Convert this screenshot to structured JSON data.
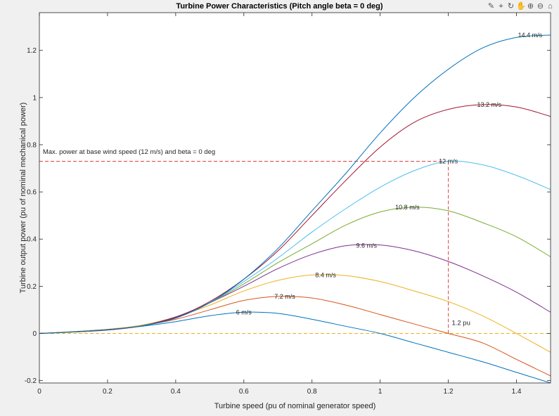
{
  "toolbar": {
    "icons": [
      {
        "name": "brush-icon",
        "glyph": "✎"
      },
      {
        "name": "datatip-icon",
        "glyph": "⌖"
      },
      {
        "name": "rotate-icon",
        "glyph": "↻"
      },
      {
        "name": "pan-icon",
        "glyph": "✋"
      },
      {
        "name": "zoom-in-icon",
        "glyph": "⊕"
      },
      {
        "name": "zoom-out-icon",
        "glyph": "⊖"
      },
      {
        "name": "home-icon",
        "glyph": "⌂"
      }
    ]
  },
  "chart_data": {
    "type": "line",
    "title": "Turbine Power Characteristics (Pitch angle beta = 0 deg)",
    "xlabel": "Turbine speed (pu of nominal generator speed)",
    "ylabel": "Turbine output power (pu of nominal mechanical power)",
    "xlim": [
      0,
      1.5
    ],
    "ylim": [
      -0.21,
      1.36
    ],
    "xticks": [
      0,
      0.2,
      0.4,
      0.6,
      0.8,
      1,
      1.2,
      1.4
    ],
    "xtick_labels": [
      "0",
      "0.2",
      "0.4",
      "0.6",
      "0.8",
      "1",
      "1.2",
      "1.4"
    ],
    "yticks": [
      -0.2,
      0,
      0.2,
      0.4,
      0.6,
      0.8,
      1,
      1.2
    ],
    "ytick_labels": [
      "-0.2",
      "0",
      "0.2",
      "0.4",
      "0.6",
      "0.8",
      "1",
      "1.2"
    ],
    "grid": false,
    "series": [
      {
        "name": "6 m/s",
        "color": "#0072bd",
        "x": [
          0,
          0.1,
          0.2,
          0.3,
          0.4,
          0.5,
          0.6,
          0.7,
          0.8,
          0.9,
          1.0,
          1.1,
          1.2,
          1.3,
          1.4,
          1.5
        ],
        "y": [
          0,
          0.006,
          0.015,
          0.03,
          0.05,
          0.075,
          0.09,
          0.085,
          0.06,
          0.03,
          0.0,
          -0.04,
          -0.08,
          -0.12,
          -0.165,
          -0.21
        ]
      },
      {
        "name": "7.2 m/s",
        "color": "#d95319",
        "x": [
          0,
          0.1,
          0.2,
          0.3,
          0.4,
          0.5,
          0.6,
          0.7,
          0.8,
          0.9,
          1.0,
          1.1,
          1.2,
          1.3,
          1.4,
          1.5
        ],
        "y": [
          0,
          0.007,
          0.016,
          0.033,
          0.06,
          0.1,
          0.14,
          0.157,
          0.15,
          0.12,
          0.08,
          0.04,
          0.0,
          -0.04,
          -0.11,
          -0.18
        ]
      },
      {
        "name": "8.4 m/s",
        "color": "#edb120",
        "x": [
          0,
          0.1,
          0.2,
          0.3,
          0.4,
          0.5,
          0.6,
          0.7,
          0.8,
          0.9,
          1.0,
          1.1,
          1.2,
          1.3,
          1.4,
          1.5
        ],
        "y": [
          0,
          0.008,
          0.018,
          0.035,
          0.07,
          0.12,
          0.18,
          0.225,
          0.248,
          0.245,
          0.22,
          0.18,
          0.135,
          0.075,
          0.0,
          -0.08
        ]
      },
      {
        "name": "9.6 m/s",
        "color": "#7e2f8e",
        "x": [
          0,
          0.1,
          0.2,
          0.3,
          0.4,
          0.5,
          0.6,
          0.7,
          0.8,
          0.9,
          1.0,
          1.1,
          1.2,
          1.3,
          1.4,
          1.5
        ],
        "y": [
          0,
          0.006,
          0.014,
          0.032,
          0.07,
          0.13,
          0.2,
          0.275,
          0.335,
          0.372,
          0.375,
          0.35,
          0.305,
          0.245,
          0.175,
          0.09
        ]
      },
      {
        "name": "10.8 m/s",
        "color": "#77ac30",
        "x": [
          0,
          0.1,
          0.2,
          0.3,
          0.4,
          0.5,
          0.6,
          0.7,
          0.8,
          0.9,
          1.0,
          1.1,
          1.2,
          1.3,
          1.4,
          1.5
        ],
        "y": [
          0,
          0.006,
          0.016,
          0.032,
          0.065,
          0.13,
          0.21,
          0.3,
          0.38,
          0.46,
          0.515,
          0.535,
          0.52,
          0.47,
          0.41,
          0.325
        ]
      },
      {
        "name": "12 m/s",
        "color": "#4dbeee",
        "x": [
          0,
          0.1,
          0.2,
          0.3,
          0.4,
          0.5,
          0.6,
          0.7,
          0.8,
          0.9,
          1.0,
          1.1,
          1.2,
          1.3,
          1.4,
          1.5
        ],
        "y": [
          0,
          0.007,
          0.016,
          0.032,
          0.065,
          0.13,
          0.22,
          0.32,
          0.43,
          0.53,
          0.62,
          0.69,
          0.73,
          0.715,
          0.67,
          0.61
        ]
      },
      {
        "name": "13.2 m/s",
        "color": "#a2142f",
        "x": [
          0,
          0.1,
          0.2,
          0.3,
          0.4,
          0.5,
          0.6,
          0.7,
          0.8,
          0.9,
          1.0,
          1.1,
          1.2,
          1.3,
          1.4,
          1.5
        ],
        "y": [
          0,
          0.007,
          0.016,
          0.032,
          0.068,
          0.135,
          0.23,
          0.35,
          0.5,
          0.65,
          0.79,
          0.895,
          0.95,
          0.97,
          0.96,
          0.92
        ]
      },
      {
        "name": "14.4 m/s",
        "color": "#0072bd",
        "x": [
          0,
          0.1,
          0.2,
          0.3,
          0.4,
          0.5,
          0.6,
          0.7,
          0.8,
          0.9,
          1.0,
          1.1,
          1.2,
          1.3,
          1.4,
          1.5
        ],
        "y": [
          0,
          0.007,
          0.016,
          0.032,
          0.065,
          0.13,
          0.23,
          0.36,
          0.52,
          0.68,
          0.85,
          1.0,
          1.12,
          1.21,
          1.255,
          1.265
        ]
      }
    ],
    "curve_labels": [
      {
        "text": "6 m/s",
        "x": 0.6,
        "y": 0.09
      },
      {
        "text": "7.2 m/s",
        "x": 0.72,
        "y": 0.157
      },
      {
        "text": "8.4 m/s",
        "x": 0.84,
        "y": 0.248
      },
      {
        "text": "9.6 m/s",
        "x": 0.96,
        "y": 0.372
      },
      {
        "text": "10.8 m/s",
        "x": 1.08,
        "y": 0.535
      },
      {
        "text": "12 m/s",
        "x": 1.2,
        "y": 0.73
      },
      {
        "text": "13.2 m/s",
        "x": 1.32,
        "y": 0.97
      },
      {
        "text": "14.4 m/s",
        "x": 1.44,
        "y": 1.265
      }
    ],
    "reference_lines": [
      {
        "kind": "horizontal",
        "y": 0.73,
        "x_from": 0,
        "x_to": 1.2,
        "color": "#e04040"
      },
      {
        "kind": "vertical",
        "x": 1.2,
        "y_from": 0,
        "y_to": 0.73,
        "color": "#e04040"
      },
      {
        "kind": "horizontal",
        "y": 0,
        "x_from": 0,
        "x_to": 1.5,
        "color": "#edb120"
      }
    ],
    "annotations": [
      {
        "text": "Max. power at base wind speed (12 m/s) and beta = 0 deg",
        "x": 0.01,
        "y": 0.77
      },
      {
        "text": "1.2 pu",
        "x": 1.21,
        "y": 0.045
      }
    ]
  }
}
